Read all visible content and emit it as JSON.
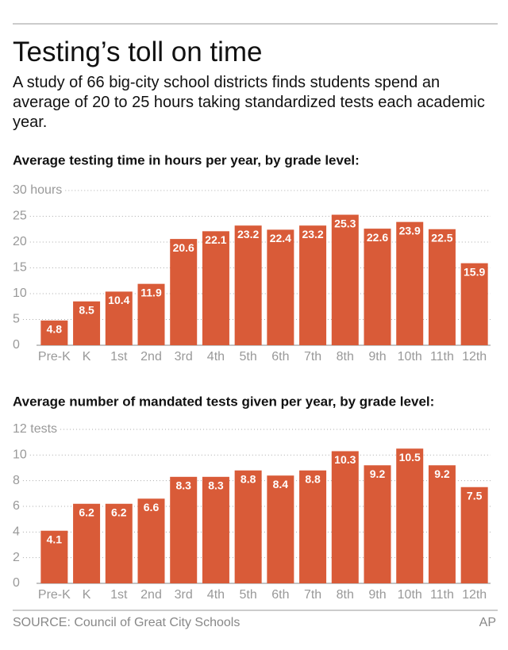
{
  "header": {
    "title": "Testing’s toll on time",
    "subtitle": "A study of 66 big-city school districts finds students spend an average of 20 to 25 hours taking standardized tests each academic year."
  },
  "chart_data": [
    {
      "type": "bar",
      "title": "Average testing time in hours per year, by grade level:",
      "categories": [
        "Pre-K",
        "K",
        "1st",
        "2nd",
        "3rd",
        "4th",
        "5th",
        "6th",
        "7th",
        "8th",
        "9th",
        "10th",
        "11th",
        "12th"
      ],
      "values": [
        4.8,
        8.5,
        10.4,
        11.9,
        20.6,
        22.1,
        23.2,
        22.4,
        23.2,
        25.3,
        22.6,
        23.9,
        22.5,
        15.9
      ],
      "color": "#d95b38",
      "ylim": [
        0,
        30
      ],
      "yticks": [
        0,
        5,
        10,
        15,
        20,
        25,
        {
          "value": 30,
          "label": "30 hours"
        }
      ],
      "grid": true
    },
    {
      "type": "bar",
      "title": "Average number of mandated tests given per year, by grade level:",
      "categories": [
        "Pre-K",
        "K",
        "1st",
        "2nd",
        "3rd",
        "4th",
        "5th",
        "6th",
        "7th",
        "8th",
        "9th",
        "10th",
        "11th",
        "12th"
      ],
      "values": [
        4.1,
        6.2,
        6.2,
        6.6,
        8.3,
        8.3,
        8.8,
        8.4,
        8.8,
        10.3,
        9.2,
        10.5,
        9.2,
        7.5
      ],
      "color": "#d95b38",
      "ylim": [
        0,
        12
      ],
      "yticks": [
        0,
        2,
        4,
        6,
        8,
        10,
        {
          "value": 12,
          "label": "12 tests"
        }
      ],
      "grid": true
    }
  ],
  "footer": {
    "source": "SOURCE: Council of Great City Schools",
    "credit": "AP"
  }
}
